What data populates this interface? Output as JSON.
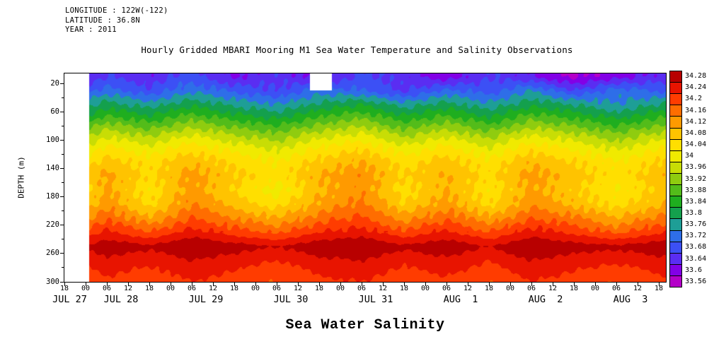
{
  "header": {
    "longitude": "LONGITUDE : 122W(-122)",
    "latitude": "LATITUDE : 36.8N",
    "year": "YEAR : 2011"
  },
  "chart_data": {
    "type": "heatmap",
    "title": "Hourly Gridded MBARI Mooring M1 Sea Water Temperature and Salinity Observations",
    "bottom_label": "Sea Water Salinity",
    "ylabel": "DEPTH (m)",
    "y_ticks": [
      20,
      60,
      100,
      140,
      180,
      220,
      260,
      300
    ],
    "y_minor_ticks": [
      40,
      80,
      120,
      160,
      200,
      240,
      280
    ],
    "depth_range": [
      6,
      300
    ],
    "time_range_hours": [
      0,
      170
    ],
    "time_axis_start": "JUL 27 18:00 2011",
    "x_tick_hours": [
      0,
      6,
      12,
      18,
      24,
      30,
      36,
      42,
      48,
      54,
      60,
      66,
      72,
      78,
      84,
      90,
      96,
      102,
      108,
      114,
      120,
      126,
      132,
      138,
      144,
      150,
      156,
      162,
      168
    ],
    "x_tick_labels": [
      "18",
      "00",
      "06",
      "12",
      "18",
      "00",
      "06",
      "12",
      "18",
      "00",
      "06",
      "12",
      "18",
      "00",
      "06",
      "12",
      "18",
      "00",
      "06",
      "12",
      "18",
      "00",
      "06",
      "12",
      "18",
      "00",
      "06",
      "12",
      "18"
    ],
    "date_labels": [
      {
        "hour": 1.5,
        "label": "JUL 27"
      },
      {
        "hour": 16,
        "label": "JUL 28"
      },
      {
        "hour": 40,
        "label": "JUL 29"
      },
      {
        "hour": 64,
        "label": "JUL 30"
      },
      {
        "hour": 88,
        "label": "JUL 31"
      },
      {
        "hour": 112,
        "label": "AUG  1"
      },
      {
        "hour": 136,
        "label": "AUG  2"
      },
      {
        "hour": 160,
        "label": "AUG  3"
      }
    ],
    "colorbar_labels": [
      "34.28",
      "34.24",
      "34.2",
      "34.16",
      "34.12",
      "34.08",
      "34.04",
      "34",
      "33.96",
      "33.92",
      "33.88",
      "33.84",
      "33.8",
      "33.76",
      "33.72",
      "33.68",
      "33.64",
      "33.6",
      "33.56"
    ],
    "palette_low_to_high": [
      "#b400c8",
      "#8200e6",
      "#5a2df2",
      "#3c50f5",
      "#2e6ee8",
      "#1e9e96",
      "#14a04d",
      "#1fae1f",
      "#53bc1a",
      "#8fcc0f",
      "#c8dd05",
      "#f0ea00",
      "#ffdf00",
      "#ffc300",
      "#ff9a00",
      "#ff6d00",
      "#ff3c00",
      "#e81400",
      "#b80000"
    ],
    "levels": {
      "min": 33.56,
      "step": 0.04,
      "max": 34.28
    },
    "depths_m": [
      10,
      30,
      50,
      70,
      90,
      110,
      130,
      150,
      170,
      190,
      210,
      230,
      250,
      270,
      285,
      300
    ],
    "time_hours": [
      5,
      12,
      24,
      36,
      48,
      60,
      72,
      84,
      96,
      108,
      120,
      132,
      144,
      156,
      170
    ],
    "salinity_grid": [
      [
        33.6,
        33.64,
        33.61,
        33.66,
        33.59,
        33.63,
        33.58,
        33.65,
        33.62,
        33.57,
        33.64,
        33.6,
        33.55,
        33.58,
        33.62
      ],
      [
        33.66,
        33.7,
        33.65,
        33.71,
        33.67,
        33.64,
        33.7,
        33.68,
        33.63,
        33.69,
        33.66,
        33.72,
        33.64,
        33.7,
        33.67
      ],
      [
        33.73,
        33.78,
        33.74,
        33.79,
        33.75,
        33.72,
        33.77,
        33.8,
        33.74,
        33.78,
        33.73,
        33.79,
        33.76,
        33.72,
        33.77
      ],
      [
        33.81,
        33.86,
        33.82,
        33.87,
        33.83,
        33.8,
        33.85,
        33.88,
        33.82,
        33.86,
        33.81,
        33.87,
        33.84,
        33.8,
        33.85
      ],
      [
        33.89,
        33.94,
        33.9,
        33.95,
        33.91,
        33.88,
        33.93,
        33.96,
        33.9,
        33.94,
        33.89,
        33.95,
        33.92,
        33.88,
        33.93
      ],
      [
        33.96,
        34.01,
        33.97,
        34.02,
        33.98,
        33.95,
        34.0,
        34.03,
        33.97,
        34.01,
        33.96,
        34.02,
        33.99,
        33.95,
        34.0
      ],
      [
        34.01,
        34.06,
        34.02,
        34.07,
        34.03,
        34.0,
        34.05,
        34.08,
        34.02,
        34.06,
        34.01,
        34.07,
        34.04,
        34.0,
        34.05
      ],
      [
        34.04,
        34.09,
        34.03,
        34.1,
        34.05,
        34.02,
        34.08,
        34.11,
        34.04,
        34.08,
        34.03,
        34.1,
        34.06,
        34.02,
        34.07
      ],
      [
        34.02,
        34.09,
        34.01,
        34.1,
        34.04,
        33.98,
        34.07,
        34.11,
        34.02,
        34.08,
        34.01,
        34.09,
        34.05,
        34.0,
        34.06
      ],
      [
        34.04,
        34.11,
        34.03,
        34.12,
        34.06,
        34.02,
        34.09,
        34.13,
        34.04,
        34.1,
        34.03,
        34.11,
        34.07,
        34.02,
        34.08
      ],
      [
        34.1,
        34.15,
        34.09,
        34.16,
        34.12,
        34.08,
        34.14,
        34.17,
        34.1,
        34.15,
        34.09,
        34.16,
        34.13,
        34.08,
        34.14
      ],
      [
        34.17,
        34.21,
        34.16,
        34.22,
        34.18,
        34.15,
        34.2,
        34.22,
        34.17,
        34.21,
        34.16,
        34.22,
        34.19,
        34.15,
        34.2
      ],
      [
        34.24,
        34.27,
        34.25,
        34.28,
        34.26,
        34.24,
        34.27,
        34.28,
        34.25,
        34.27,
        34.24,
        34.28,
        34.26,
        34.25,
        34.27
      ],
      [
        34.2,
        34.23,
        34.21,
        34.24,
        34.22,
        34.2,
        34.23,
        34.24,
        34.21,
        34.23,
        34.2,
        34.24,
        34.22,
        34.21,
        34.23
      ],
      [
        34.18,
        34.21,
        34.19,
        34.22,
        34.2,
        34.17,
        34.21,
        34.22,
        34.19,
        34.21,
        34.18,
        34.22,
        34.2,
        34.18,
        34.21
      ],
      [
        34.16,
        34.19,
        34.17,
        34.2,
        34.18,
        34.16,
        34.19,
        34.2,
        34.17,
        34.19,
        34.16,
        34.2,
        34.18,
        34.16,
        34.19
      ]
    ],
    "missing_regions": [
      {
        "t0": -1,
        "t1": 7,
        "d0": 0,
        "d1": 301
      },
      {
        "t0": 69.5,
        "t1": 75.5,
        "d0": 0,
        "d1": 30
      }
    ]
  }
}
